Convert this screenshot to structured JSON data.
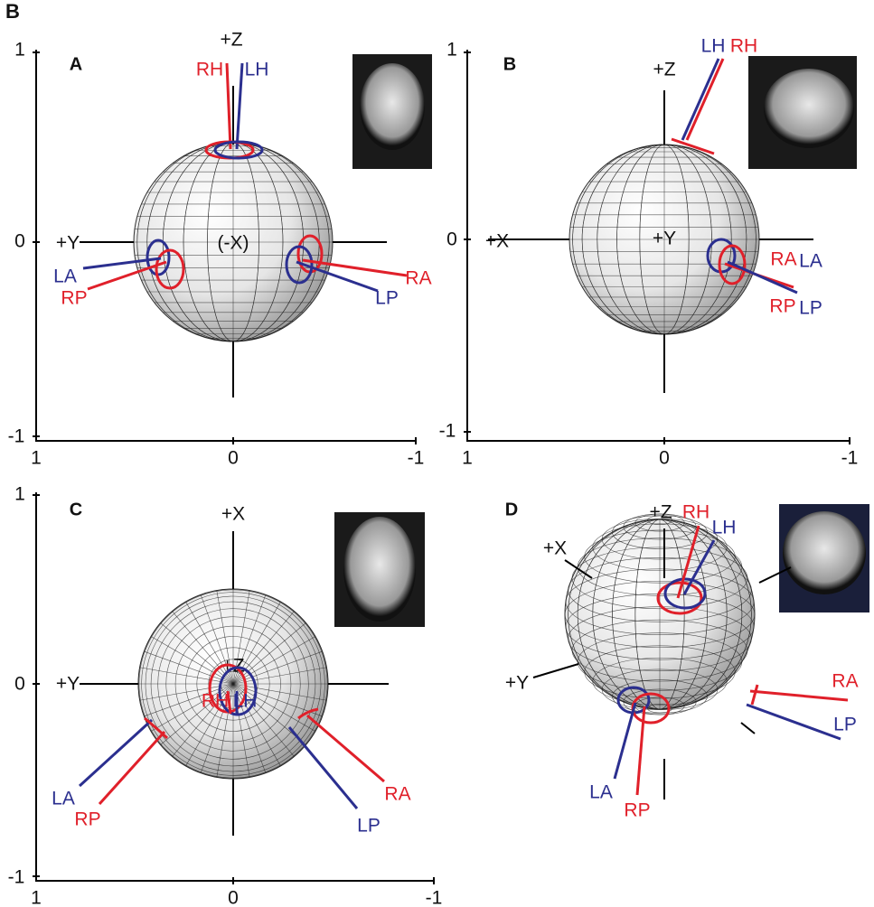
{
  "figure_label": "B",
  "panels": [
    {
      "label": "A",
      "y_ticks": [
        "1",
        "0",
        "-1"
      ],
      "x_ticks": [
        "1",
        "0",
        "-1"
      ],
      "axes": [
        "+Z",
        "+Y",
        "(-X)"
      ],
      "markers": [
        "RH",
        "LH",
        "LA",
        "RP",
        "RA",
        "LP"
      ]
    },
    {
      "label": "B",
      "y_ticks": [
        "1",
        "0",
        "-1"
      ],
      "x_ticks": [
        "1",
        "0",
        "-1"
      ],
      "axes": [
        "+Z",
        "+X",
        "+Y"
      ],
      "markers": [
        "LH",
        "RH",
        "RA",
        "LA",
        "RP",
        "LP"
      ]
    },
    {
      "label": "C",
      "y_ticks": [
        "1",
        "0",
        "-1"
      ],
      "x_ticks": [
        "1",
        "0",
        "-1"
      ],
      "axes": [
        "+X",
        "+Y",
        "+Z"
      ],
      "markers": [
        "RH",
        "LH",
        "LA",
        "RP",
        "RA",
        "LP"
      ]
    },
    {
      "label": "D",
      "axes": [
        "+Z",
        "+X",
        "+Y"
      ],
      "markers": [
        "RH",
        "LH",
        "RA",
        "LP",
        "LA",
        "RP"
      ]
    }
  ]
}
